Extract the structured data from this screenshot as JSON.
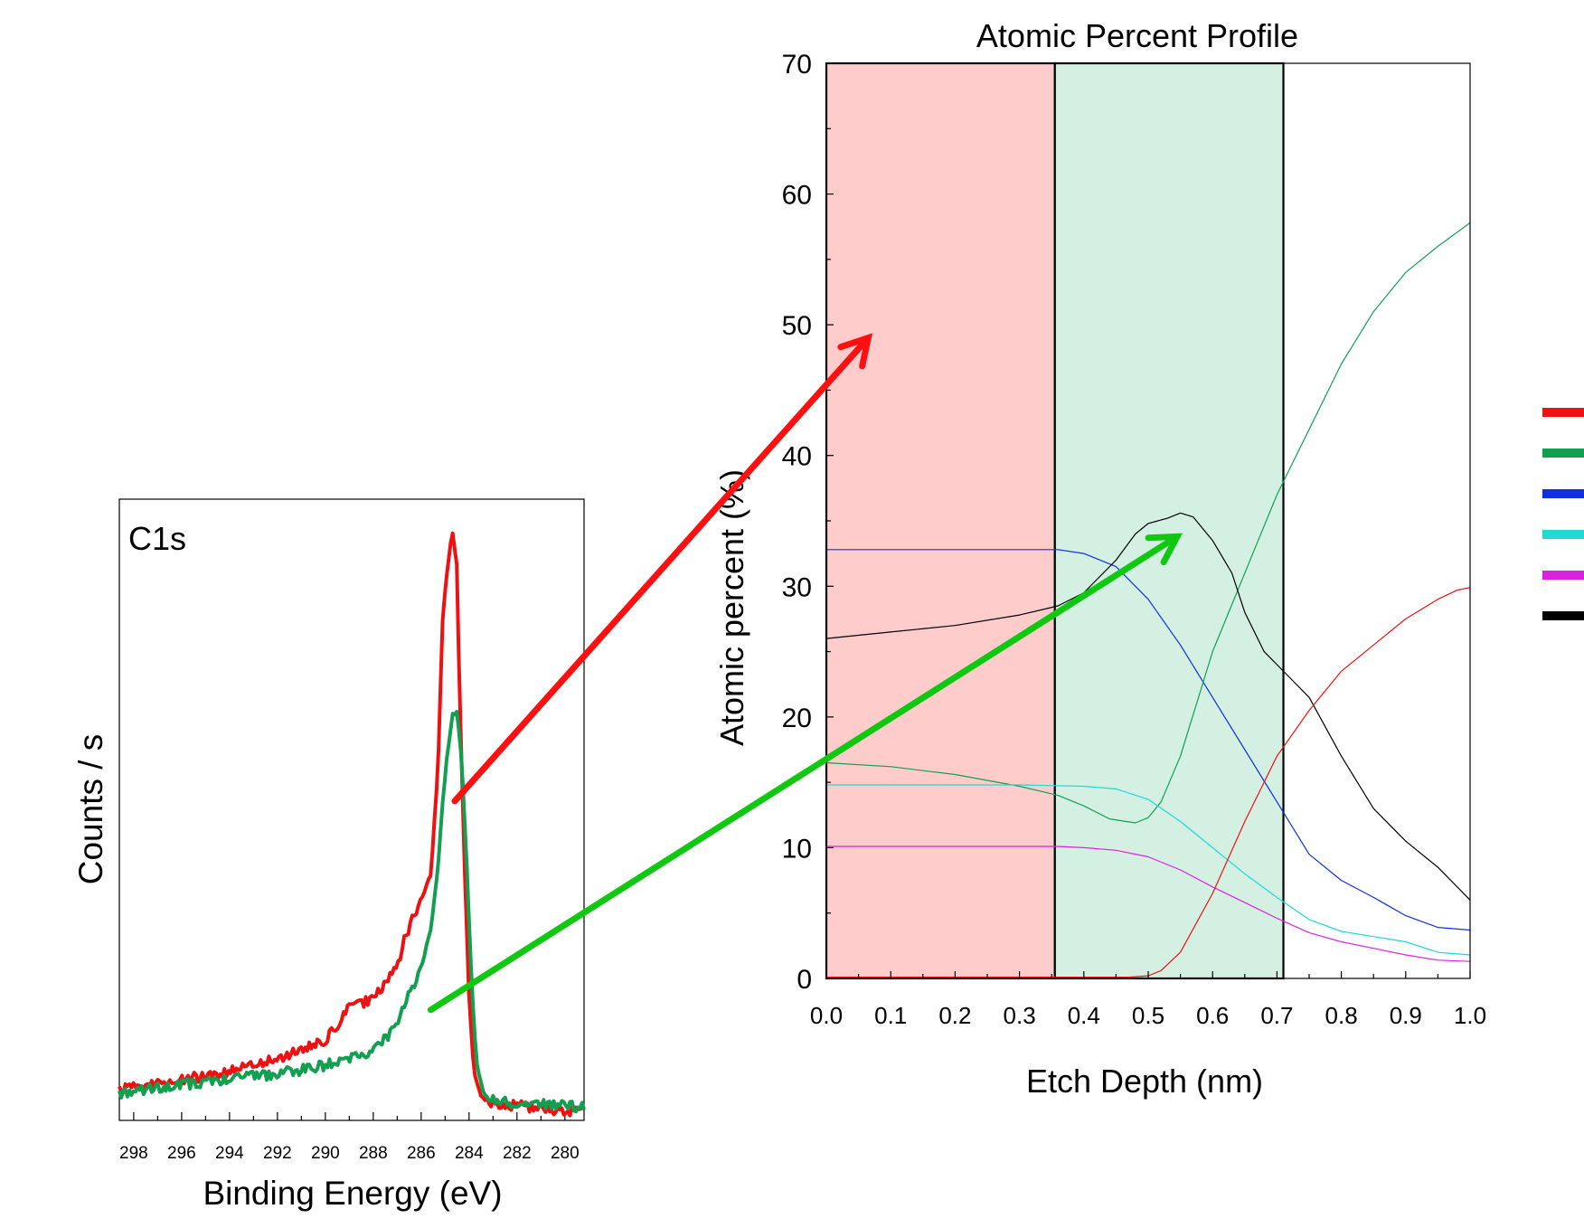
{
  "colors": {
    "red": "#ee1111",
    "green": "#12a050",
    "blue": "#1030e0",
    "cyan": "#20d8d8",
    "magenta": "#dd22dd",
    "black": "#000000",
    "region1_fill": "#ffcccc",
    "region2_fill": "#d4f0e2",
    "arrow_red": "#ff1010",
    "arrow_green": "#10c810"
  },
  "chart_data": [
    {
      "type": "line",
      "panel": "spectrum",
      "title": "",
      "annotation": "C1s",
      "xlabel": "Binding Energy (eV)",
      "ylabel": "Counts / s",
      "xlim": [
        298.6,
        279.2
      ],
      "x_reversed": true,
      "ylim": [
        0,
        100
      ],
      "y_ticks_labeled": false,
      "x_tick_labels": [
        "298",
        "296",
        "294",
        "292",
        "290",
        "288",
        "286",
        "284",
        "282",
        "280"
      ],
      "x_ticks": [
        298,
        296,
        294,
        292,
        290,
        288,
        286,
        284,
        282,
        280
      ],
      "series": [
        {
          "color": "red",
          "line_width": 4,
          "x": [
            298.6,
            297,
            296,
            295,
            294,
            293,
            292,
            291,
            290,
            289.5,
            289,
            288.5,
            288,
            287.5,
            287,
            286.7,
            286.4,
            286,
            285.6,
            285.3,
            285.1,
            284.9,
            284.7,
            284.5,
            284.4,
            284.2,
            284,
            283.8,
            283.5,
            283.2,
            283,
            282,
            281,
            280,
            279.2
          ],
          "y": [
            5.2,
            6.0,
            6.6,
            7.3,
            8.0,
            9.0,
            10.0,
            11.5,
            13.0,
            15.5,
            18.5,
            19.0,
            20.0,
            22.0,
            25.0,
            29.5,
            32.5,
            36.0,
            40.0,
            57.0,
            82.0,
            90.0,
            96.0,
            90.0,
            70.0,
            43.0,
            20.0,
            8.0,
            3.8,
            3.0,
            2.8,
            2.4,
            2.0,
            1.6,
            1.2
          ]
        },
        {
          "color": "green",
          "line_width": 4,
          "x": [
            298.6,
            297,
            296,
            295,
            294,
            293,
            292,
            291,
            290,
            289,
            288,
            287.5,
            287,
            286.5,
            286,
            285.6,
            285.3,
            285.1,
            284.9,
            284.7,
            284.5,
            284.3,
            284.1,
            283.9,
            283.7,
            283.4,
            283.1,
            282.5,
            282,
            281,
            280,
            279.2
          ],
          "y": [
            4.5,
            5.2,
            5.8,
            6.2,
            6.8,
            7.2,
            7.6,
            8.2,
            9.0,
            10.2,
            11.3,
            13.3,
            15.8,
            20.5,
            25.0,
            31.0,
            41.0,
            52.0,
            60.0,
            66.0,
            66.5,
            58.0,
            42.0,
            23.0,
            9.5,
            4.5,
            3.6,
            3.0,
            2.8,
            2.6,
            2.4,
            2.2
          ]
        }
      ]
    },
    {
      "type": "line",
      "panel": "profile",
      "title": "Atomic Percent Profile",
      "xlabel": "Etch Depth (nm)",
      "ylabel": "Atomic percent (%)",
      "xlim": [
        0,
        1.0
      ],
      "ylim": [
        0,
        70
      ],
      "x_ticks": [
        0.0,
        0.1,
        0.2,
        0.3,
        0.4,
        0.5,
        0.6,
        0.7,
        0.8,
        0.9,
        1.0
      ],
      "x_tick_labels": [
        "0.0",
        "0.1",
        "0.2",
        "0.3",
        "0.4",
        "0.5",
        "0.6",
        "0.7",
        "0.8",
        "0.9",
        "1.0"
      ],
      "y_ticks": [
        0,
        10,
        20,
        30,
        40,
        50,
        60,
        70
      ],
      "y_tick_labels": [
        "0",
        "10",
        "20",
        "30",
        "40",
        "50",
        "60",
        "70"
      ],
      "shaded_regions": [
        {
          "x": [
            0.0,
            0.355
          ],
          "color": "region1_fill"
        },
        {
          "x": [
            0.355,
            0.71
          ],
          "color": "region2_fill"
        }
      ],
      "series": [
        {
          "color": "blue",
          "x": [
            0,
            0.3,
            0.36,
            0.4,
            0.45,
            0.5,
            0.55,
            0.6,
            0.65,
            0.7,
            0.75,
            0.8,
            0.85,
            0.9,
            0.95,
            1.0
          ],
          "y": [
            32.8,
            32.8,
            32.8,
            32.5,
            31.5,
            29.0,
            25.5,
            21.5,
            17.5,
            13.5,
            9.5,
            7.5,
            6.2,
            4.8,
            3.9,
            3.7
          ]
        },
        {
          "color": "green",
          "x": [
            0,
            0.1,
            0.2,
            0.3,
            0.36,
            0.4,
            0.44,
            0.48,
            0.5,
            0.52,
            0.55,
            0.6,
            0.65,
            0.7,
            0.75,
            0.8,
            0.85,
            0.9,
            0.95,
            1.0
          ],
          "y": [
            16.5,
            16.2,
            15.6,
            14.7,
            14.0,
            13.2,
            12.2,
            11.9,
            12.3,
            13.5,
            17.0,
            25.0,
            31.0,
            37.0,
            42.0,
            47.0,
            51.0,
            54.0,
            56.0,
            57.8
          ]
        },
        {
          "color": "cyan",
          "x": [
            0,
            0.3,
            0.4,
            0.45,
            0.5,
            0.55,
            0.6,
            0.65,
            0.7,
            0.75,
            0.8,
            0.85,
            0.9,
            0.95,
            1.0
          ],
          "y": [
            14.8,
            14.8,
            14.7,
            14.5,
            13.7,
            12.0,
            10.0,
            8.0,
            6.2,
            4.5,
            3.6,
            3.2,
            2.8,
            2.0,
            1.8
          ]
        },
        {
          "color": "magenta",
          "x": [
            0,
            0.36,
            0.4,
            0.45,
            0.5,
            0.55,
            0.6,
            0.65,
            0.7,
            0.75,
            0.8,
            0.85,
            0.9,
            0.95,
            1.0
          ],
          "y": [
            10.1,
            10.1,
            10.0,
            9.8,
            9.3,
            8.3,
            7.0,
            5.8,
            4.6,
            3.5,
            2.8,
            2.3,
            1.8,
            1.4,
            1.3
          ]
        },
        {
          "color": "black",
          "x": [
            0,
            0.1,
            0.2,
            0.3,
            0.36,
            0.4,
            0.45,
            0.48,
            0.5,
            0.53,
            0.55,
            0.57,
            0.6,
            0.63,
            0.65,
            0.68,
            0.7,
            0.75,
            0.8,
            0.85,
            0.9,
            0.95,
            1.0
          ],
          "y": [
            26.0,
            26.5,
            27.0,
            27.8,
            28.5,
            29.5,
            32.0,
            34.0,
            34.8,
            35.2,
            35.6,
            35.3,
            33.5,
            31.0,
            28.0,
            25.0,
            24.0,
            21.5,
            17.0,
            13.0,
            10.5,
            8.5,
            6.0
          ]
        },
        {
          "color": "red",
          "x": [
            0,
            0.47,
            0.5,
            0.52,
            0.55,
            0.6,
            0.65,
            0.7,
            0.75,
            0.8,
            0.85,
            0.9,
            0.95,
            0.98,
            1.0
          ],
          "y": [
            0.1,
            0.1,
            0.2,
            0.6,
            2.0,
            6.5,
            12.0,
            17.0,
            20.5,
            23.5,
            25.5,
            27.5,
            29.0,
            29.7,
            29.9
          ]
        }
      ],
      "legend": {
        "placement": "right",
        "entries": [
          {
            "color": "red",
            "label": ""
          },
          {
            "color": "green",
            "label": ""
          },
          {
            "color": "blue",
            "label": ""
          },
          {
            "color": "cyan",
            "label": ""
          },
          {
            "color": "magenta",
            "label": ""
          },
          {
            "color": "black",
            "label": ""
          }
        ]
      }
    }
  ],
  "arrows": [
    {
      "color": "arrow_red",
      "from": {
        "panel": 0,
        "x": 284.6,
        "y": 52
      },
      "to": {
        "panel": 1,
        "x": 0.065,
        "y": 49
      }
    },
    {
      "color": "arrow_green",
      "from": {
        "panel": 0,
        "x": 285.6,
        "y": 18
      },
      "to": {
        "panel": 1,
        "x": 0.545,
        "y": 33.8
      }
    }
  ]
}
